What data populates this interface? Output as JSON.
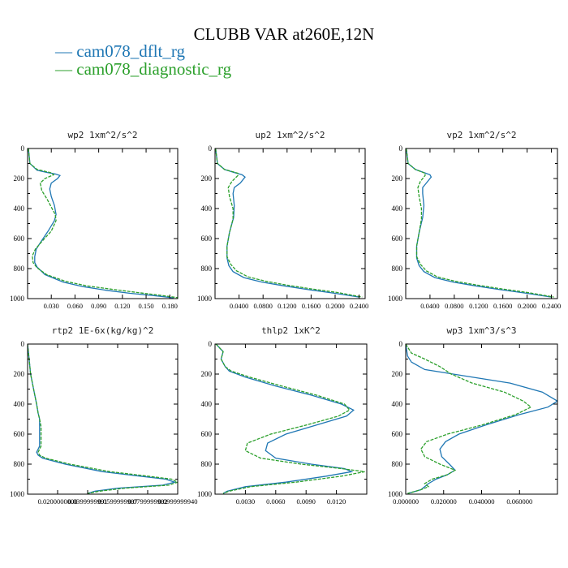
{
  "title": "CLUBB VAR at260E,12N",
  "legend": [
    {
      "label": "— cam078_dflt_rg",
      "color": "#1f77b4"
    },
    {
      "label": "— cam078_diagnostic_rg",
      "color": "#2ca02c"
    }
  ],
  "chart_data": [
    {
      "type": "line",
      "title": "wp2  1xm^2/s^2",
      "xlim": [
        0.0,
        0.19
      ],
      "ylim": [
        0,
        1000
      ],
      "yticks": [
        "0",
        "200",
        "400",
        "600",
        "800",
        "1000"
      ],
      "xticks": [
        {
          "v": 0.03,
          "label": "0.030"
        },
        {
          "v": 0.06,
          "label": "0.060"
        },
        {
          "v": 0.09,
          "label": "0.090"
        },
        {
          "v": 0.12,
          "label": "0.120"
        },
        {
          "v": 0.15,
          "label": "0.150"
        },
        {
          "v": 0.18,
          "label": "0.180"
        }
      ],
      "series": [
        {
          "name": "cam078_dflt_rg",
          "color": "#1f77b4",
          "dash": false,
          "x": [
            0.001,
            0.003,
            0.012,
            0.025,
            0.035,
            0.041,
            0.038,
            0.03,
            0.028,
            0.03,
            0.034,
            0.036,
            0.034,
            0.026,
            0.017,
            0.011,
            0.009,
            0.009,
            0.012,
            0.022,
            0.045,
            0.07,
            0.1,
            0.13,
            0.16,
            0.185
          ],
          "y": [
            0,
            100,
            145,
            160,
            170,
            180,
            200,
            230,
            270,
            320,
            380,
            440,
            480,
            550,
            620,
            670,
            720,
            760,
            790,
            840,
            890,
            920,
            945,
            965,
            980,
            995
          ]
        },
        {
          "name": "cam078_diagnostic_rg",
          "color": "#2ca02c",
          "dash": true,
          "x": [
            0.001,
            0.003,
            0.012,
            0.022,
            0.03,
            0.033,
            0.022,
            0.016,
            0.018,
            0.025,
            0.03,
            0.035,
            0.036,
            0.03,
            0.018,
            0.01,
            0.006,
            0.007,
            0.012,
            0.024,
            0.048,
            0.075,
            0.11,
            0.14,
            0.168,
            0.192
          ],
          "y": [
            0,
            100,
            140,
            152,
            162,
            175,
            200,
            230,
            280,
            340,
            390,
            440,
            480,
            550,
            620,
            670,
            715,
            760,
            795,
            840,
            885,
            915,
            940,
            960,
            978,
            995
          ]
        }
      ]
    },
    {
      "type": "line",
      "title": "up2  1xm^2/s^2",
      "xlim": [
        0.0,
        0.25
      ],
      "ylim": [
        0,
        1000
      ],
      "yticks": [
        "0",
        "200",
        "400",
        "600",
        "800",
        "1000"
      ],
      "xticks": [
        {
          "v": 0.04,
          "label": "0.0400"
        },
        {
          "v": 0.08,
          "label": "0.0800"
        },
        {
          "v": 0.12,
          "label": "0.1200"
        },
        {
          "v": 0.16,
          "label": "0.1600"
        },
        {
          "v": 0.2,
          "label": "0.2000"
        },
        {
          "v": 0.24,
          "label": "0.2400"
        }
      ],
      "series": [
        {
          "name": "cam078_dflt_rg",
          "color": "#1f77b4",
          "dash": false,
          "x": [
            0.001,
            0.004,
            0.016,
            0.032,
            0.045,
            0.05,
            0.042,
            0.032,
            0.03,
            0.032,
            0.031,
            0.024,
            0.02,
            0.02,
            0.023,
            0.03,
            0.048,
            0.078,
            0.115,
            0.155,
            0.2,
            0.24
          ],
          "y": [
            0,
            100,
            140,
            160,
            175,
            190,
            230,
            260,
            300,
            380,
            460,
            560,
            650,
            730,
            780,
            820,
            860,
            890,
            915,
            940,
            965,
            990
          ]
        },
        {
          "name": "cam078_diagnostic_rg",
          "color": "#2ca02c",
          "dash": true,
          "x": [
            0.001,
            0.004,
            0.016,
            0.03,
            0.038,
            0.038,
            0.028,
            0.022,
            0.024,
            0.03,
            0.03,
            0.024,
            0.02,
            0.02,
            0.026,
            0.036,
            0.055,
            0.085,
            0.12,
            0.16,
            0.205,
            0.245
          ],
          "y": [
            0,
            100,
            140,
            155,
            165,
            180,
            220,
            260,
            320,
            400,
            470,
            560,
            650,
            720,
            770,
            815,
            855,
            885,
            910,
            935,
            960,
            990
          ]
        }
      ]
    },
    {
      "type": "line",
      "title": "vp2  1xm^2/s^2",
      "xlim": [
        0.0,
        0.25
      ],
      "ylim": [
        0,
        1000
      ],
      "yticks": [
        "0",
        "200",
        "400",
        "600",
        "800",
        "1000"
      ],
      "xticks": [
        {
          "v": 0.04,
          "label": "0.0400"
        },
        {
          "v": 0.08,
          "label": "0.0800"
        },
        {
          "v": 0.12,
          "label": "0.1200"
        },
        {
          "v": 0.16,
          "label": "0.1600"
        },
        {
          "v": 0.2,
          "label": "0.2000"
        },
        {
          "v": 0.24,
          "label": "0.2400"
        }
      ],
      "series": [
        {
          "name": "cam078_dflt_rg",
          "color": "#1f77b4",
          "dash": false,
          "x": [
            0.001,
            0.004,
            0.016,
            0.03,
            0.04,
            0.042,
            0.034,
            0.028,
            0.028,
            0.03,
            0.028,
            0.022,
            0.018,
            0.018,
            0.022,
            0.03,
            0.048,
            0.078,
            0.115,
            0.155,
            0.2,
            0.24
          ],
          "y": [
            0,
            100,
            140,
            160,
            175,
            190,
            230,
            260,
            300,
            380,
            460,
            560,
            650,
            730,
            780,
            820,
            860,
            890,
            915,
            940,
            965,
            990
          ]
        },
        {
          "name": "cam078_diagnostic_rg",
          "color": "#2ca02c",
          "dash": true,
          "x": [
            0.001,
            0.004,
            0.016,
            0.026,
            0.032,
            0.032,
            0.024,
            0.02,
            0.022,
            0.026,
            0.026,
            0.022,
            0.018,
            0.018,
            0.024,
            0.034,
            0.052,
            0.082,
            0.118,
            0.158,
            0.202,
            0.244
          ],
          "y": [
            0,
            100,
            140,
            155,
            165,
            180,
            220,
            260,
            320,
            400,
            470,
            560,
            650,
            720,
            770,
            815,
            855,
            885,
            910,
            935,
            960,
            990
          ]
        }
      ]
    },
    {
      "type": "line",
      "title": "rtp2  1E-6x(kg/kg)^2",
      "xlim": [
        0.0,
        0.1
      ],
      "ylim": [
        0,
        1000
      ],
      "yticks": [
        "0",
        "200",
        "400",
        "600",
        "800",
        "1000"
      ],
      "xticks": [
        {
          "v": 0.02,
          "label": "0.0200000000"
        },
        {
          "v": 0.04,
          "label": "0.0399999991"
        },
        {
          "v": 0.06,
          "label": "0.0599999987"
        },
        {
          "v": 0.08,
          "label": "0.0799999982"
        },
        {
          "v": 0.1,
          "label": "0.0999999940"
        }
      ],
      "series": [
        {
          "name": "cam078_dflt_rg",
          "color": "#1f77b4",
          "dash": false,
          "x": [
            0.0,
            0.001,
            0.002,
            0.004,
            0.006,
            0.007,
            0.008,
            0.008,
            0.008,
            0.008,
            0.008,
            0.007,
            0.006,
            0.007,
            0.01,
            0.025,
            0.05,
            0.075,
            0.092,
            0.098,
            0.09,
            0.06,
            0.045,
            0.04
          ],
          "y": [
            0,
            100,
            200,
            300,
            400,
            460,
            500,
            550,
            600,
            650,
            680,
            700,
            720,
            740,
            760,
            800,
            850,
            880,
            900,
            920,
            940,
            960,
            980,
            995
          ]
        },
        {
          "name": "cam078_diagnostic_rg",
          "color": "#2ca02c",
          "dash": true,
          "x": [
            0.0,
            0.001,
            0.002,
            0.004,
            0.006,
            0.007,
            0.008,
            0.009,
            0.009,
            0.009,
            0.009,
            0.008,
            0.007,
            0.008,
            0.012,
            0.028,
            0.055,
            0.08,
            0.096,
            0.1,
            0.094,
            0.065,
            0.048,
            0.04
          ],
          "y": [
            0,
            100,
            200,
            300,
            400,
            460,
            500,
            550,
            600,
            650,
            680,
            700,
            720,
            740,
            760,
            800,
            850,
            880,
            900,
            920,
            940,
            960,
            980,
            995
          ]
        }
      ]
    },
    {
      "type": "line",
      "title": "thlp2  1xK^2",
      "xlim": [
        0.0,
        0.015
      ],
      "ylim": [
        0,
        1000
      ],
      "yticks": [
        "0",
        "200",
        "400",
        "600",
        "800",
        "1000"
      ],
      "xticks": [
        {
          "v": 0.003,
          "label": "0.0030"
        },
        {
          "v": 0.006,
          "label": "0.0060"
        },
        {
          "v": 0.009,
          "label": "0.0090"
        },
        {
          "v": 0.012,
          "label": "0.0120"
        }
      ],
      "series": [
        {
          "name": "cam078_dflt_rg",
          "color": "#1f77b4",
          "dash": false,
          "x": [
            0.0001,
            0.0008,
            0.0006,
            0.001,
            0.0014,
            0.003,
            0.006,
            0.0095,
            0.0125,
            0.0137,
            0.013,
            0.01,
            0.007,
            0.0052,
            0.005,
            0.006,
            0.0095,
            0.0128,
            0.0135,
            0.011,
            0.007,
            0.003,
            0.0012,
            0.0008
          ],
          "y": [
            0,
            50,
            100,
            150,
            180,
            220,
            280,
            340,
            400,
            440,
            480,
            540,
            600,
            660,
            710,
            760,
            800,
            830,
            850,
            880,
            920,
            950,
            980,
            995
          ]
        },
        {
          "name": "cam078_diagnostic_rg",
          "color": "#2ca02c",
          "dash": true,
          "x": [
            0.0001,
            0.0008,
            0.0006,
            0.001,
            0.0016,
            0.0034,
            0.0066,
            0.01,
            0.0128,
            0.0133,
            0.0122,
            0.009,
            0.0055,
            0.0032,
            0.003,
            0.0045,
            0.0085,
            0.0125,
            0.0148,
            0.0125,
            0.008,
            0.0035,
            0.0014,
            0.0008
          ],
          "y": [
            0,
            50,
            100,
            150,
            180,
            220,
            280,
            340,
            400,
            440,
            480,
            540,
            600,
            660,
            710,
            760,
            800,
            830,
            850,
            880,
            920,
            950,
            980,
            995
          ]
        }
      ]
    },
    {
      "type": "line",
      "title": "wp3  1xm^3/s^3",
      "xlim": [
        0.0,
        0.08
      ],
      "ylim": [
        0,
        1000
      ],
      "yticks": [
        "0",
        "200",
        "400",
        "600",
        "800",
        "1000"
      ],
      "xticks": [
        {
          "v": 0.0,
          "label": "0.000000"
        },
        {
          "v": 0.02,
          "label": "0.020000"
        },
        {
          "v": 0.04,
          "label": "0.040000"
        },
        {
          "v": 0.06,
          "label": "0.060000"
        }
      ],
      "series": [
        {
          "name": "cam078_dflt_rg",
          "color": "#1f77b4",
          "dash": false,
          "x": [
            0.0,
            0.001,
            0.003,
            0.01,
            0.03,
            0.055,
            0.072,
            0.08,
            0.075,
            0.06,
            0.042,
            0.028,
            0.021,
            0.018,
            0.019,
            0.023,
            0.026,
            0.022,
            0.016,
            0.012,
            0.01,
            0.008,
            0.004,
            0.001
          ],
          "y": [
            0,
            80,
            120,
            170,
            210,
            260,
            320,
            380,
            420,
            470,
            540,
            600,
            650,
            700,
            750,
            800,
            840,
            870,
            900,
            930,
            950,
            970,
            985,
            995
          ]
        },
        {
          "name": "cam078_diagnostic_rg",
          "color": "#2ca02c",
          "dash": true,
          "x": [
            0.0,
            0.003,
            0.01,
            0.018,
            0.024,
            0.035,
            0.052,
            0.062,
            0.066,
            0.058,
            0.04,
            0.022,
            0.011,
            0.008,
            0.01,
            0.018,
            0.026,
            0.022,
            0.014,
            0.01,
            0.012,
            0.008,
            0.004,
            0.001
          ],
          "y": [
            0,
            60,
            100,
            150,
            200,
            260,
            320,
            380,
            420,
            470,
            540,
            600,
            650,
            700,
            750,
            800,
            840,
            870,
            900,
            930,
            950,
            970,
            985,
            995
          ]
        }
      ]
    }
  ]
}
